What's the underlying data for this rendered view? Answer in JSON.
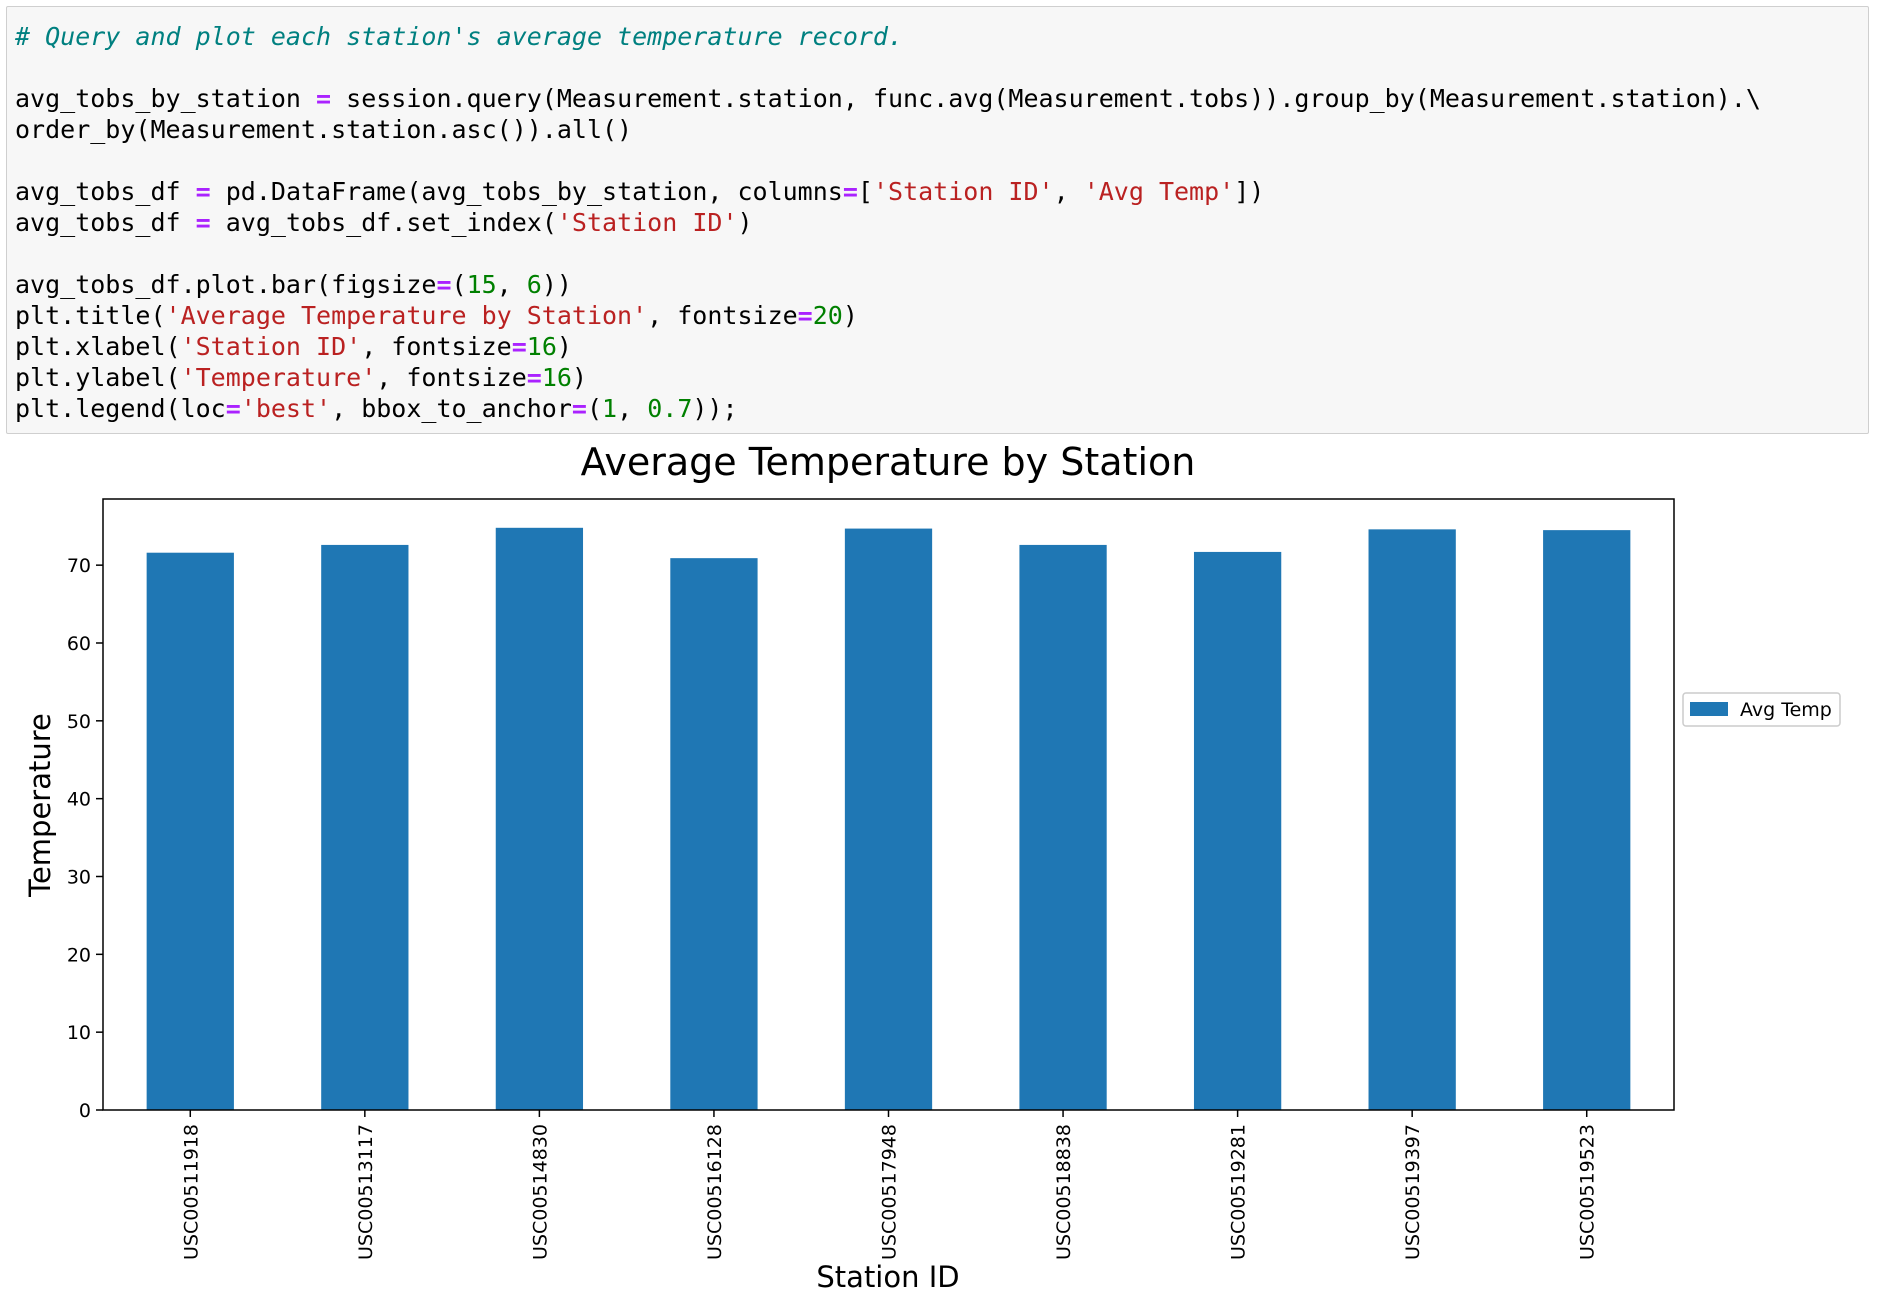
{
  "code_cell": {
    "lines": [
      [
        {
          "t": "# Query and plot each station's average temperature record.",
          "c": "cm"
        }
      ],
      [
        {
          "t": "",
          "c": ""
        }
      ],
      [
        {
          "t": "avg_tobs_by_station ",
          "c": ""
        },
        {
          "t": "=",
          "c": "op"
        },
        {
          "t": " session.query(Measurement.station, func.avg(Measurement.tobs)).group_by(Measurement.station).\\",
          "c": ""
        }
      ],
      [
        {
          "t": "order_by(Measurement.station.asc()).all()",
          "c": ""
        }
      ],
      [
        {
          "t": "",
          "c": ""
        }
      ],
      [
        {
          "t": "avg_tobs_df ",
          "c": ""
        },
        {
          "t": "=",
          "c": "op"
        },
        {
          "t": " pd.DataFrame(avg_tobs_by_station, columns",
          "c": ""
        },
        {
          "t": "=",
          "c": "op"
        },
        {
          "t": "[",
          "c": ""
        },
        {
          "t": "'Station ID'",
          "c": "st"
        },
        {
          "t": ", ",
          "c": ""
        },
        {
          "t": "'Avg Temp'",
          "c": "st"
        },
        {
          "t": "])",
          "c": ""
        }
      ],
      [
        {
          "t": "avg_tobs_df ",
          "c": ""
        },
        {
          "t": "=",
          "c": "op"
        },
        {
          "t": " avg_tobs_df.set_index(",
          "c": ""
        },
        {
          "t": "'Station ID'",
          "c": "st"
        },
        {
          "t": ")",
          "c": ""
        }
      ],
      [
        {
          "t": "",
          "c": ""
        }
      ],
      [
        {
          "t": "avg_tobs_df.plot.bar(figsize",
          "c": ""
        },
        {
          "t": "=",
          "c": "op"
        },
        {
          "t": "(",
          "c": ""
        },
        {
          "t": "15",
          "c": "nu"
        },
        {
          "t": ", ",
          "c": ""
        },
        {
          "t": "6",
          "c": "nu"
        },
        {
          "t": "))",
          "c": ""
        }
      ],
      [
        {
          "t": "plt.title(",
          "c": ""
        },
        {
          "t": "'Average Temperature by Station'",
          "c": "st"
        },
        {
          "t": ", fontsize",
          "c": ""
        },
        {
          "t": "=",
          "c": "op"
        },
        {
          "t": "20",
          "c": "nu"
        },
        {
          "t": ")",
          "c": ""
        }
      ],
      [
        {
          "t": "plt.xlabel(",
          "c": ""
        },
        {
          "t": "'Station ID'",
          "c": "st"
        },
        {
          "t": ", fontsize",
          "c": ""
        },
        {
          "t": "=",
          "c": "op"
        },
        {
          "t": "16",
          "c": "nu"
        },
        {
          "t": ")",
          "c": ""
        }
      ],
      [
        {
          "t": "plt.ylabel(",
          "c": ""
        },
        {
          "t": "'Temperature'",
          "c": "st"
        },
        {
          "t": ", fontsize",
          "c": ""
        },
        {
          "t": "=",
          "c": "op"
        },
        {
          "t": "16",
          "c": "nu"
        },
        {
          "t": ")",
          "c": ""
        }
      ],
      [
        {
          "t": "plt.legend(loc",
          "c": ""
        },
        {
          "t": "=",
          "c": "op"
        },
        {
          "t": "'best'",
          "c": "st"
        },
        {
          "t": ", bbox_to_anchor",
          "c": ""
        },
        {
          "t": "=",
          "c": "op"
        },
        {
          "t": "(",
          "c": ""
        },
        {
          "t": "1",
          "c": "nu"
        },
        {
          "t": ", ",
          "c": ""
        },
        {
          "t": "0.7",
          "c": "nu"
        },
        {
          "t": "));",
          "c": ""
        }
      ]
    ]
  },
  "colors": {
    "bar": "#1f77b4",
    "comment": "#008080",
    "operator": "#aa22ff",
    "string": "#ba2121",
    "number": "#008000"
  },
  "chart_data": {
    "type": "bar",
    "title": "Average Temperature by Station",
    "xlabel": "Station ID",
    "ylabel": "Temperature",
    "categories": [
      "USC00511918",
      "USC00513117",
      "USC00514830",
      "USC00516128",
      "USC00517948",
      "USC00518838",
      "USC00519281",
      "USC00519397",
      "USC00519523"
    ],
    "series": [
      {
        "name": "Avg Temp",
        "values": [
          71.6,
          72.6,
          74.8,
          70.9,
          74.7,
          72.6,
          71.7,
          74.6,
          74.5
        ]
      }
    ],
    "yticks": [
      0,
      10,
      20,
      30,
      40,
      50,
      60,
      70
    ],
    "ylim": [
      0,
      78.5
    ],
    "grid": false,
    "legend": "right"
  }
}
